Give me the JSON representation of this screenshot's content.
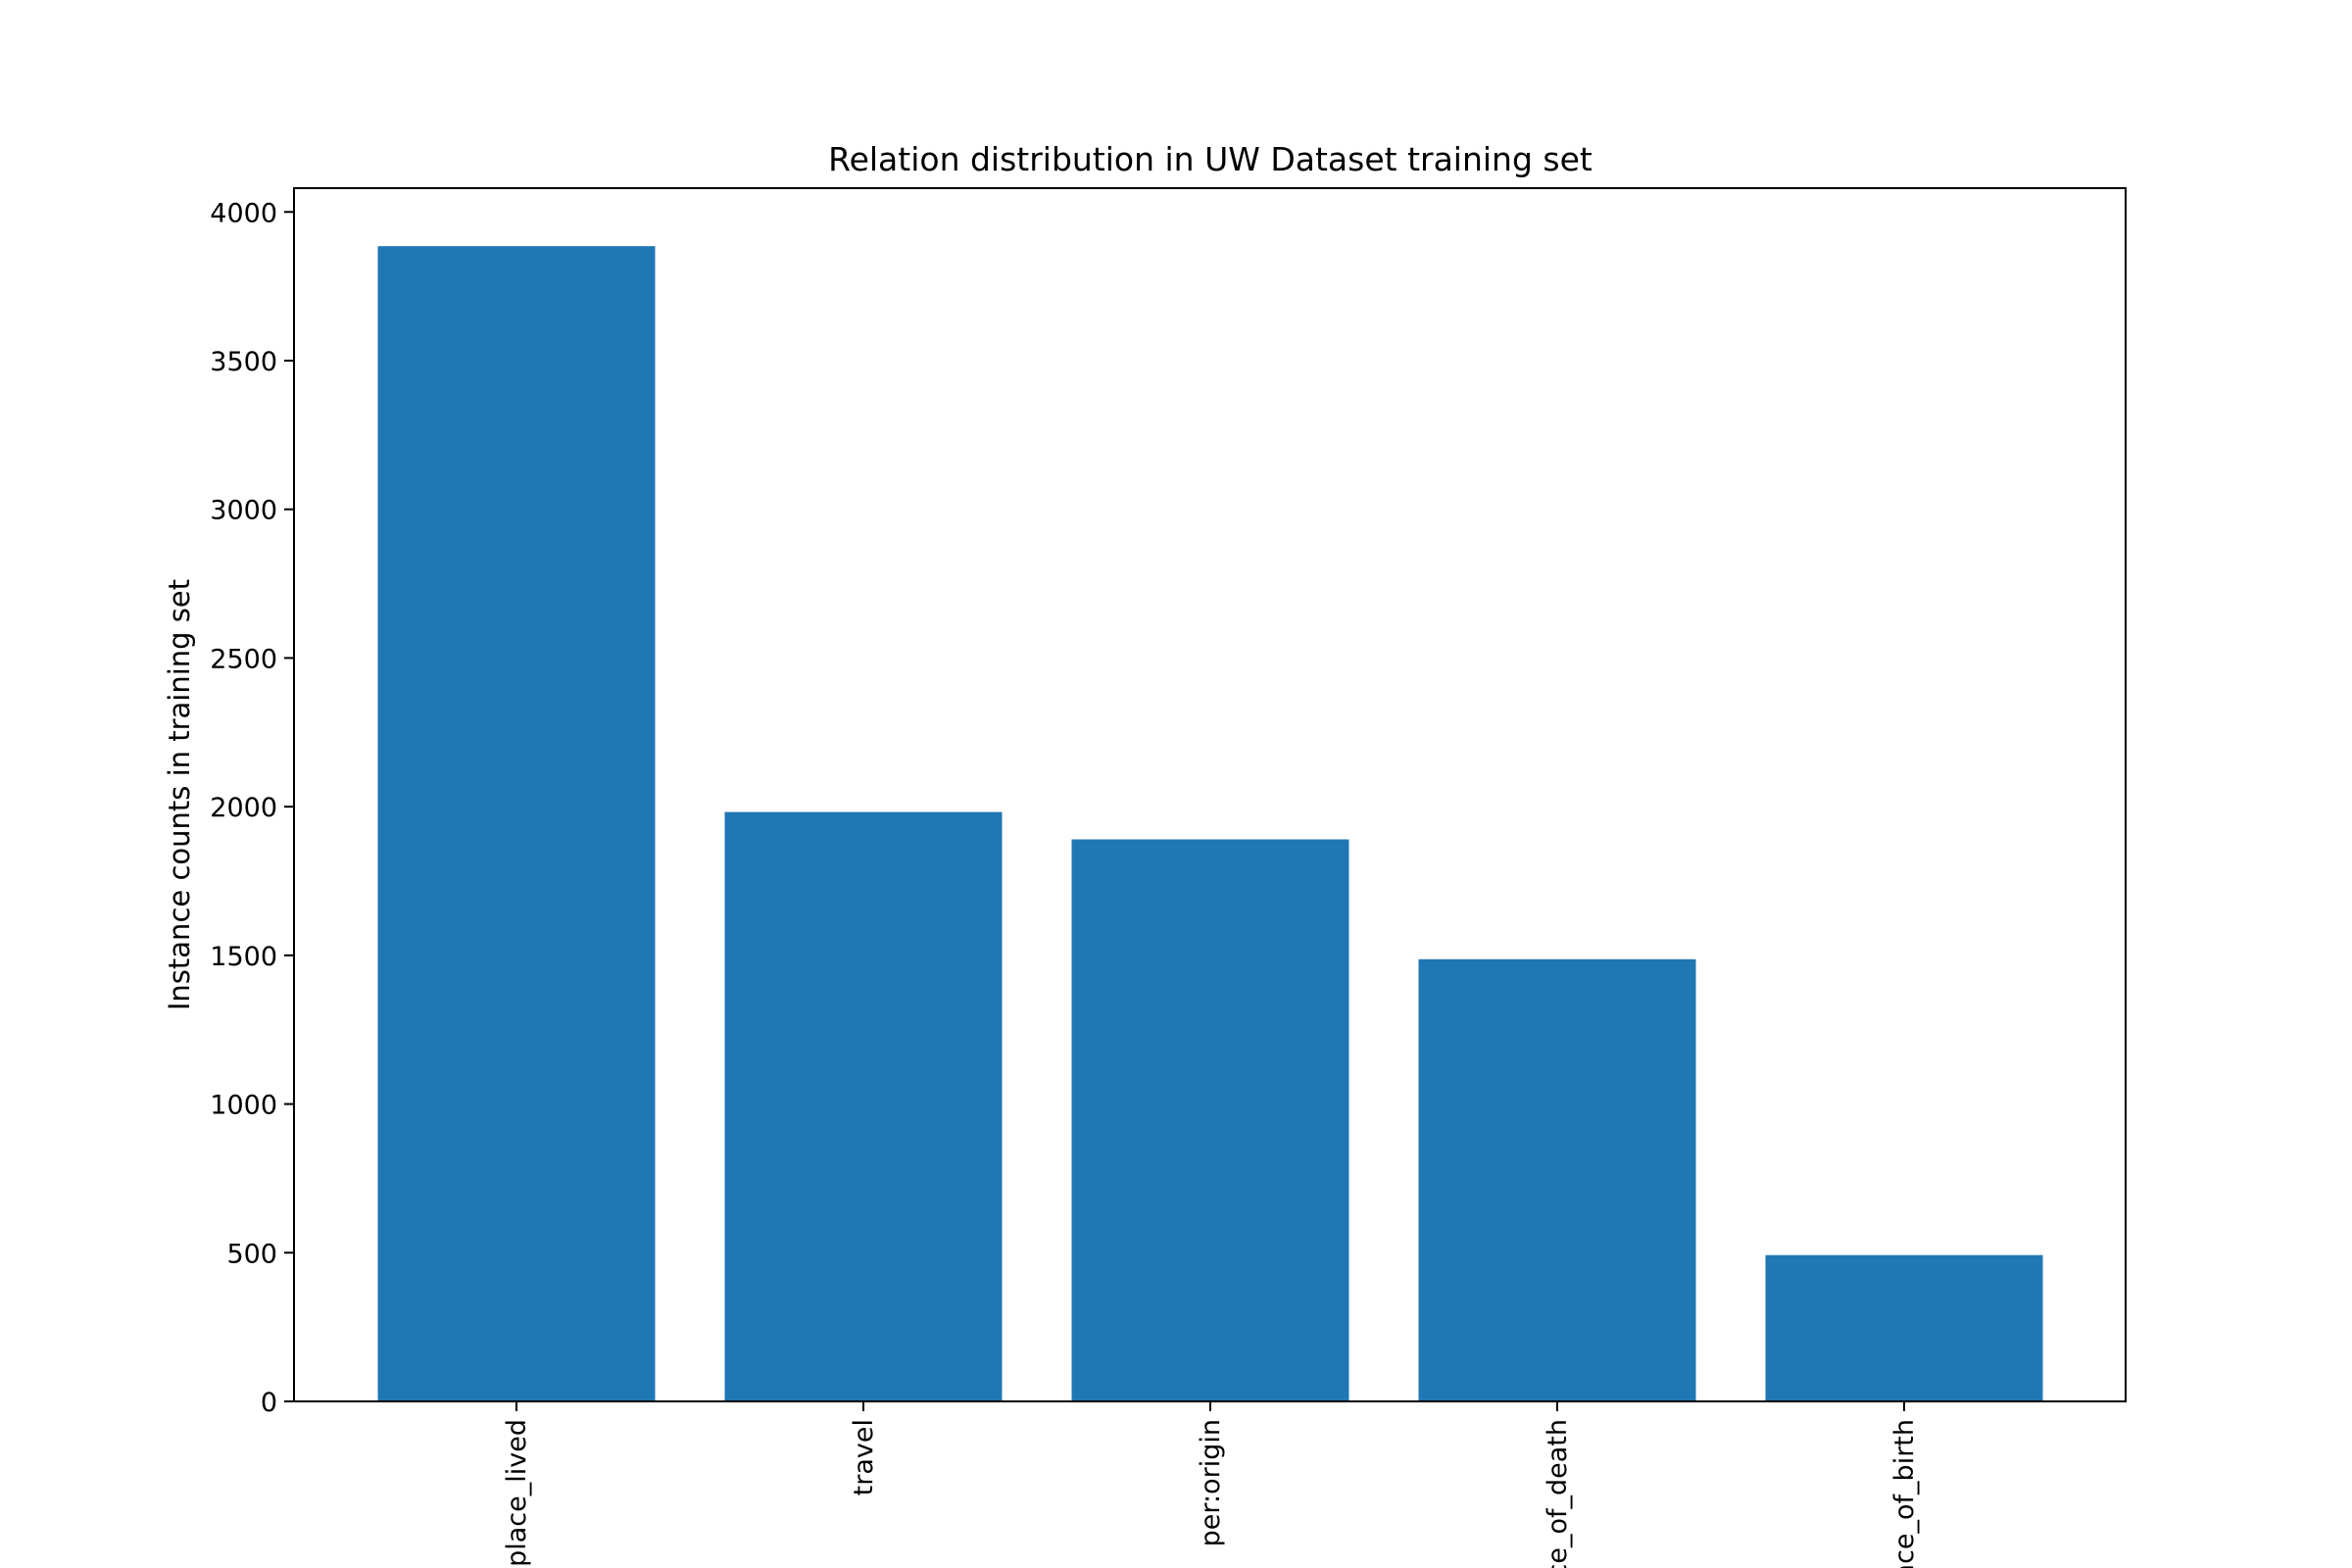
{
  "chart_data": {
    "type": "bar",
    "title": "Relation distribution in UW Dataset training set",
    "xlabel": "",
    "ylabel": "Instance counts in training set",
    "categories": [
      "place_lived",
      "travel",
      "per:origin",
      "ce_of_death",
      "ace_of_birth"
    ],
    "values": [
      3885,
      1982,
      1890,
      1487,
      492
    ],
    "ylim": [
      0,
      4080
    ],
    "yticks": [
      0,
      500,
      1000,
      1500,
      2000,
      2500,
      3000,
      3500,
      4000
    ],
    "grid": false,
    "legend": "none",
    "bar_color": "#1f77b4"
  }
}
